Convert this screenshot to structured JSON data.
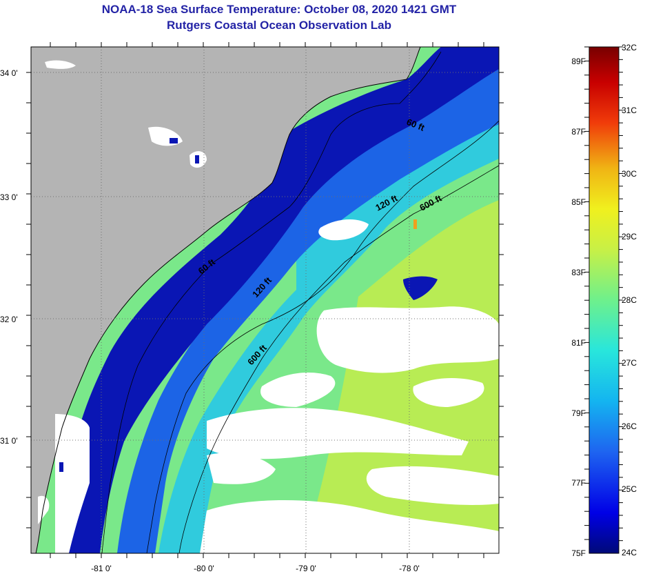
{
  "header": {
    "title": "NOAA-18 Sea Surface Temperature:  October 08, 2020 1421 GMT",
    "subtitle": "Rutgers Coastal Ocean Observation Lab"
  },
  "map": {
    "lon_labels": [
      "-81 0'",
      "-80 0'",
      "-79 0'",
      "-78 0'"
    ],
    "lat_labels": [
      "34 0'",
      "33 0'",
      "32 0'",
      "31 0'"
    ],
    "contours": {
      "c60_a": "60 ft",
      "c60_b": "60 ft",
      "c120_a": "120 ft",
      "c120_b": "120 ft",
      "c600_a": "600 ft",
      "c600_b": "600 ft"
    },
    "colors": {
      "land": "#b4b4b4",
      "cloud": "#ffffff",
      "nearshore": "#0a16b4",
      "shelf": "#1c64e6",
      "mid": "#28c8e6",
      "offshore": "#7ae88a",
      "gulfstream": "#c8ec46"
    }
  },
  "colorbar": {
    "fahrenheit_labels": [
      "89F",
      "87F",
      "85F",
      "83F",
      "81F",
      "79F",
      "77F",
      "75F"
    ],
    "celsius_labels": [
      "32C",
      "31C",
      "30C",
      "29C",
      "28C",
      "27C",
      "26C",
      "25C",
      "24C"
    ]
  }
}
